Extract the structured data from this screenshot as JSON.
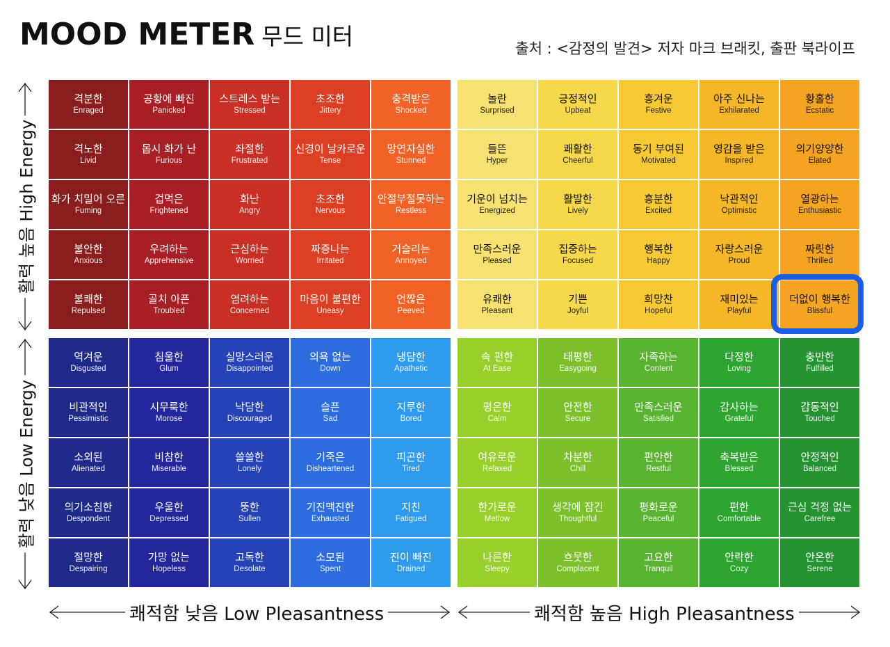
{
  "header": {
    "title_main": "MOOD METER",
    "title_sub": "무드 미터",
    "source": "출처 : <감정의 발견> 저자 마크 브래킷, 출판 북라이프"
  },
  "axes": {
    "y_high": "활력 높음 High Energy",
    "y_low": "활력 낮음 Low Energy",
    "x_low": "쾌적함 낮음 Low Pleasantness",
    "x_high": "쾌적함 높음  High Pleasantness"
  },
  "colors": {
    "red": [
      "#8a1d1d",
      "#a91f26",
      "#c92f25",
      "#dc3f23",
      "#f06225"
    ],
    "yellow": [
      "#f7e170",
      "#f7d84a",
      "#f6c934",
      "#f5b727",
      "#f5a422"
    ],
    "blue": [
      "#1f2a8a",
      "#23279b",
      "#2542b7",
      "#2d6de0",
      "#2e9bef"
    ],
    "green": [
      "#97cf2b",
      "#7cc12c",
      "#58b330",
      "#2ea431",
      "#249430"
    ],
    "highlight": "#1b5ee6"
  },
  "highlighted_cell": "Blissful",
  "quadrants": {
    "tl": [
      [
        {
          "ko": "격분한",
          "en": "Enraged"
        },
        {
          "ko": "공황에 빠진",
          "en": "Panicked"
        },
        {
          "ko": "스트레스 받는",
          "en": "Stressed"
        },
        {
          "ko": "초조한",
          "en": "Jittery"
        },
        {
          "ko": "충격받은",
          "en": "Shocked"
        }
      ],
      [
        {
          "ko": "격노한",
          "en": "Livid"
        },
        {
          "ko": "몹시 화가 난",
          "en": "Furious"
        },
        {
          "ko": "좌절한",
          "en": "Frustrated"
        },
        {
          "ko": "신경이 날카로운",
          "en": "Tense"
        },
        {
          "ko": "망연자실한",
          "en": "Stunned"
        }
      ],
      [
        {
          "ko": "화가 치밀어 오른",
          "en": "Fuming"
        },
        {
          "ko": "겁먹은",
          "en": "Frightened"
        },
        {
          "ko": "화난",
          "en": "Angry"
        },
        {
          "ko": "초조한",
          "en": "Nervous"
        },
        {
          "ko": "안절부절못하는",
          "en": "Restless"
        }
      ],
      [
        {
          "ko": "불안한",
          "en": "Anxious"
        },
        {
          "ko": "우려하는",
          "en": "Apprehensive"
        },
        {
          "ko": "근심하는",
          "en": "Worried"
        },
        {
          "ko": "짜증나는",
          "en": "Irritated"
        },
        {
          "ko": "거슬리는",
          "en": "Annoyed"
        }
      ],
      [
        {
          "ko": "불쾌한",
          "en": "Repulsed"
        },
        {
          "ko": "골치 아픈",
          "en": "Troubled"
        },
        {
          "ko": "염려하는",
          "en": "Concerned"
        },
        {
          "ko": "마음이 불편한",
          "en": "Uneasy"
        },
        {
          "ko": "언짢은",
          "en": "Peeved"
        }
      ]
    ],
    "tr": [
      [
        {
          "ko": "놀란",
          "en": "Surprised"
        },
        {
          "ko": "긍정적인",
          "en": "Upbeat"
        },
        {
          "ko": "흥겨운",
          "en": "Festive"
        },
        {
          "ko": "아주 신나는",
          "en": "Exhilarated"
        },
        {
          "ko": "황홀한",
          "en": "Ecstatic"
        }
      ],
      [
        {
          "ko": "들뜬",
          "en": "Hyper"
        },
        {
          "ko": "쾌활한",
          "en": "Cheerful"
        },
        {
          "ko": "동기 부여된",
          "en": "Motivated"
        },
        {
          "ko": "영감을 받은",
          "en": "Inspired"
        },
        {
          "ko": "의기양양한",
          "en": "Elated"
        }
      ],
      [
        {
          "ko": "기운이 넘치는",
          "en": "Energized"
        },
        {
          "ko": "활발한",
          "en": "Lively"
        },
        {
          "ko": "흥분한",
          "en": "Excited"
        },
        {
          "ko": "낙관적인",
          "en": "Optimistic"
        },
        {
          "ko": "열광하는",
          "en": "Enthusiastic"
        }
      ],
      [
        {
          "ko": "만족스러운",
          "en": "Pleased"
        },
        {
          "ko": "집중하는",
          "en": "Focused"
        },
        {
          "ko": "행복한",
          "en": "Happy"
        },
        {
          "ko": "자랑스러운",
          "en": "Proud"
        },
        {
          "ko": "짜릿한",
          "en": "Thrilled"
        }
      ],
      [
        {
          "ko": "유쾌한",
          "en": "Pleasant"
        },
        {
          "ko": "기쁜",
          "en": "Joyful"
        },
        {
          "ko": "희망찬",
          "en": "Hopeful"
        },
        {
          "ko": "재미있는",
          "en": "Playful"
        },
        {
          "ko": "더없이 행복한",
          "en": "Blissful"
        }
      ]
    ],
    "bl": [
      [
        {
          "ko": "역겨운",
          "en": "Disgusted"
        },
        {
          "ko": "침울한",
          "en": "Glum"
        },
        {
          "ko": "실망스러운",
          "en": "Disappointed"
        },
        {
          "ko": "의욕 없는",
          "en": "Down"
        },
        {
          "ko": "냉담한",
          "en": "Apathetic"
        }
      ],
      [
        {
          "ko": "비관적인",
          "en": "Pessimistic"
        },
        {
          "ko": "시무룩한",
          "en": "Morose"
        },
        {
          "ko": "낙담한",
          "en": "Discouraged"
        },
        {
          "ko": "슬픈",
          "en": "Sad"
        },
        {
          "ko": "지루한",
          "en": "Bored"
        }
      ],
      [
        {
          "ko": "소외된",
          "en": "Alienated"
        },
        {
          "ko": "비참한",
          "en": "Miserable"
        },
        {
          "ko": "쓸쓸한",
          "en": "Lonely"
        },
        {
          "ko": "기죽은",
          "en": "Disheartened"
        },
        {
          "ko": "피곤한",
          "en": "Tired"
        }
      ],
      [
        {
          "ko": "의기소침한",
          "en": "Despondent"
        },
        {
          "ko": "우울한",
          "en": "Depressed"
        },
        {
          "ko": "뚱한",
          "en": "Sullen"
        },
        {
          "ko": "기진맥진한",
          "en": "Exhausted"
        },
        {
          "ko": "지친",
          "en": "Fatigued"
        }
      ],
      [
        {
          "ko": "절망한",
          "en": "Despairing"
        },
        {
          "ko": "가망 없는",
          "en": "Hopeless"
        },
        {
          "ko": "고독한",
          "en": "Desolate"
        },
        {
          "ko": "소모된",
          "en": "Spent"
        },
        {
          "ko": "진이 빠진",
          "en": "Drained"
        }
      ]
    ],
    "br": [
      [
        {
          "ko": "속 편한",
          "en": "At Ease"
        },
        {
          "ko": "태평한",
          "en": "Easygoing"
        },
        {
          "ko": "자족하는",
          "en": "Content"
        },
        {
          "ko": "다정한",
          "en": "Loving"
        },
        {
          "ko": "충만한",
          "en": "Fulfilled"
        }
      ],
      [
        {
          "ko": "평온한",
          "en": "Calm"
        },
        {
          "ko": "안전한",
          "en": "Secure"
        },
        {
          "ko": "만족스러운",
          "en": "Satisfied"
        },
        {
          "ko": "감사하는",
          "en": "Grateful"
        },
        {
          "ko": "감동적인",
          "en": "Touched"
        }
      ],
      [
        {
          "ko": "여유로운",
          "en": "Relaxed"
        },
        {
          "ko": "차분한",
          "en": "Chill"
        },
        {
          "ko": "편안한",
          "en": "Restful"
        },
        {
          "ko": "축복받은",
          "en": "Blessed"
        },
        {
          "ko": "안정적인",
          "en": "Balanced"
        }
      ],
      [
        {
          "ko": "한가로운",
          "en": "Metlow"
        },
        {
          "ko": "생각에 잠긴",
          "en": "Thoughtful"
        },
        {
          "ko": "평화로운",
          "en": "Peaceful"
        },
        {
          "ko": "편한",
          "en": "Comfortable"
        },
        {
          "ko": "근심 걱정 없는",
          "en": "Carefree"
        }
      ],
      [
        {
          "ko": "나른한",
          "en": "Sleepy"
        },
        {
          "ko": "흐뭇한",
          "en": "Complacent"
        },
        {
          "ko": "고요한",
          "en": "Tranquil"
        },
        {
          "ko": "안락한",
          "en": "Cozy"
        },
        {
          "ko": "안온한",
          "en": "Serene"
        }
      ]
    ]
  }
}
